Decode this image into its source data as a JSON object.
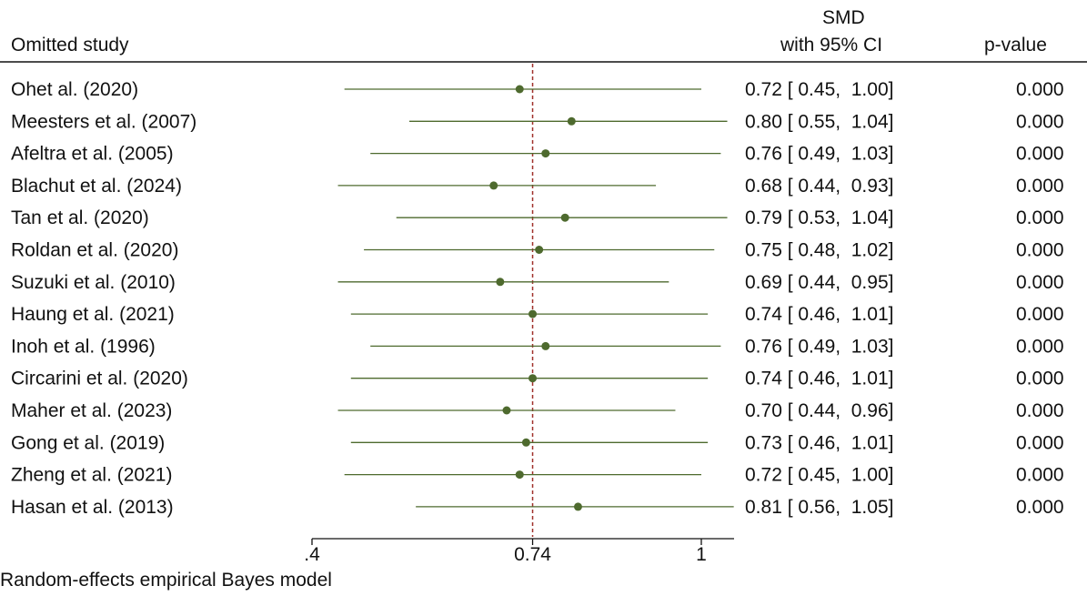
{
  "header": {
    "study_col": "Omitted study",
    "smd_line1": "SMD",
    "smd_line2": "with 95% CI",
    "pvalue_col": "p-value"
  },
  "note": "Random-effects empirical Bayes model",
  "colors": {
    "marker": "#4e6a2e",
    "line": "#4e6a2e",
    "ref_line": "#a0302b",
    "axis": "#111111"
  },
  "chart_data": {
    "type": "forest",
    "reference_value": 0.74,
    "xlim": [
      0.4,
      1.0
    ],
    "xticks": [
      {
        "value": 0.4,
        "label": ".4"
      },
      {
        "value": 0.74,
        "label": "0.74"
      },
      {
        "value": 1.0,
        "label": "1"
      }
    ],
    "rows": [
      {
        "study": "Ohet al. (2020)",
        "est": 0.72,
        "lo": 0.45,
        "hi": 1.0,
        "ci_text": "0.72 [ 0.45,  1.00]",
        "p": "0.000"
      },
      {
        "study": "Meesters et al. (2007)",
        "est": 0.8,
        "lo": 0.55,
        "hi": 1.04,
        "ci_text": "0.80 [ 0.55,  1.04]",
        "p": "0.000"
      },
      {
        "study": "Afeltra et al. (2005)",
        "est": 0.76,
        "lo": 0.49,
        "hi": 1.03,
        "ci_text": "0.76 [ 0.49,  1.03]",
        "p": "0.000"
      },
      {
        "study": "Blachut et al. (2024)",
        "est": 0.68,
        "lo": 0.44,
        "hi": 0.93,
        "ci_text": "0.68 [ 0.44,  0.93]",
        "p": "0.000"
      },
      {
        "study": "Tan et al. (2020)",
        "est": 0.79,
        "lo": 0.53,
        "hi": 1.04,
        "ci_text": "0.79 [ 0.53,  1.04]",
        "p": "0.000"
      },
      {
        "study": "Roldan et al. (2020)",
        "est": 0.75,
        "lo": 0.48,
        "hi": 1.02,
        "ci_text": "0.75 [ 0.48,  1.02]",
        "p": "0.000"
      },
      {
        "study": "Suzuki et al. (2010)",
        "est": 0.69,
        "lo": 0.44,
        "hi": 0.95,
        "ci_text": "0.69 [ 0.44,  0.95]",
        "p": "0.000"
      },
      {
        "study": "Haung et al. (2021)",
        "est": 0.74,
        "lo": 0.46,
        "hi": 1.01,
        "ci_text": "0.74 [ 0.46,  1.01]",
        "p": "0.000"
      },
      {
        "study": "Inoh et al. (1996)",
        "est": 0.76,
        "lo": 0.49,
        "hi": 1.03,
        "ci_text": "0.76 [ 0.49,  1.03]",
        "p": "0.000"
      },
      {
        "study": "Circarini et al. (2020)",
        "est": 0.74,
        "lo": 0.46,
        "hi": 1.01,
        "ci_text": "0.74 [ 0.46,  1.01]",
        "p": "0.000"
      },
      {
        "study": "Maher et al. (2023)",
        "est": 0.7,
        "lo": 0.44,
        "hi": 0.96,
        "ci_text": "0.70 [ 0.44,  0.96]",
        "p": "0.000"
      },
      {
        "study": "Gong et al. (2019)",
        "est": 0.73,
        "lo": 0.46,
        "hi": 1.01,
        "ci_text": "0.73 [ 0.46,  1.01]",
        "p": "0.000"
      },
      {
        "study": "Zheng et al. (2021)",
        "est": 0.72,
        "lo": 0.45,
        "hi": 1.0,
        "ci_text": "0.72 [ 0.45,  1.00]",
        "p": "0.000"
      },
      {
        "study": "Hasan et al. (2013)",
        "est": 0.81,
        "lo": 0.56,
        "hi": 1.05,
        "ci_text": "0.81 [ 0.56,  1.05]",
        "p": "0.000"
      }
    ]
  }
}
